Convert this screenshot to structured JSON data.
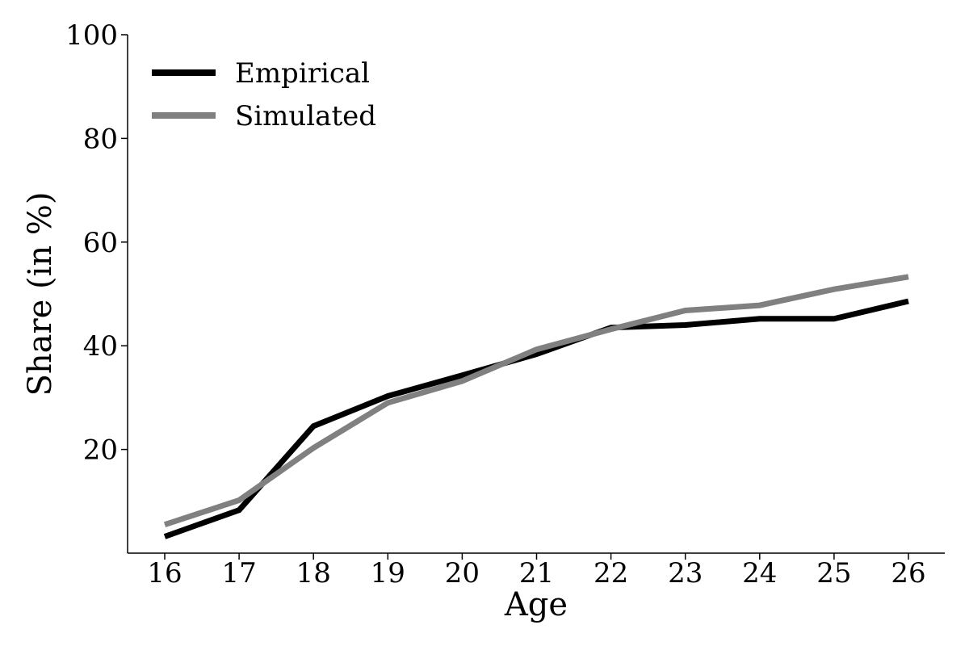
{
  "chart_data": {
    "type": "line",
    "title": "",
    "xlabel": "Age",
    "ylabel": "Share (in %)",
    "x": [
      16,
      17,
      18,
      19,
      20,
      21,
      22,
      23,
      24,
      25,
      26
    ],
    "xlim": [
      15.5,
      26.5
    ],
    "ylim": [
      0,
      100
    ],
    "yticks": [
      20,
      40,
      60,
      80,
      100
    ],
    "xticks": [
      16,
      17,
      18,
      19,
      20,
      21,
      22,
      23,
      24,
      25,
      26
    ],
    "grid": false,
    "legend_position": "top-left",
    "series": [
      {
        "name": "Empirical",
        "color": "#000000",
        "values": [
          3.2,
          8.3,
          24.5,
          30.3,
          34.3,
          38.4,
          43.5,
          44.0,
          45.2,
          45.2,
          48.6
        ]
      },
      {
        "name": "Simulated",
        "color": "#808080",
        "values": [
          5.5,
          10.2,
          20.3,
          29.0,
          33.2,
          39.3,
          43.2,
          46.8,
          47.8,
          50.9,
          53.3
        ]
      }
    ]
  }
}
